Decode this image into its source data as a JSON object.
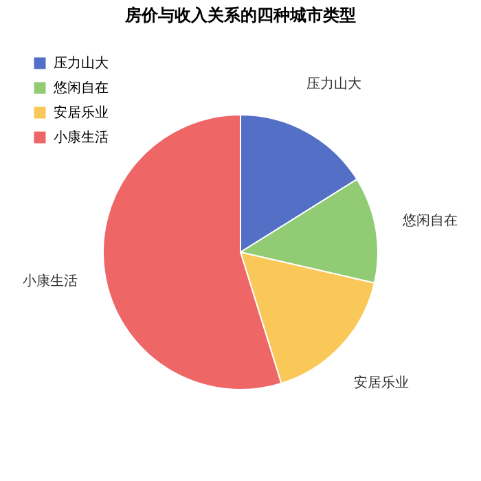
{
  "chart_data": {
    "type": "pie",
    "title": "房价与收入关系的四种城市类型",
    "categories": [
      "压力山大",
      "悠闲自在",
      "安居乐业",
      "小康生活"
    ],
    "values": [
      16.1,
      12.5,
      16.6,
      54.8
    ],
    "colors": [
      "#5470c6",
      "#91cc75",
      "#fac858",
      "#ee6666"
    ],
    "legend": "top left"
  }
}
